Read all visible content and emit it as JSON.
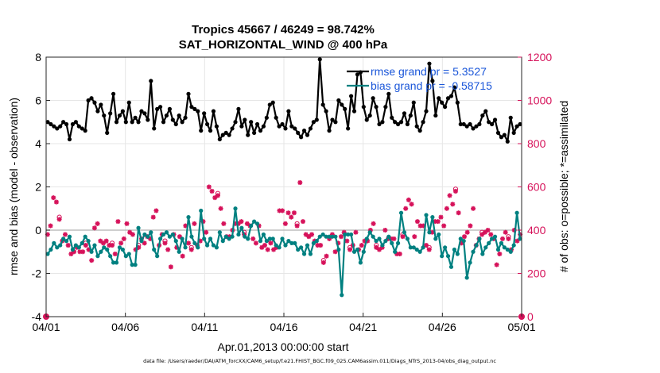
{
  "chart_data": {
    "type": "line",
    "title_line1": "Tropics 45667 / 46249 = 98.742%",
    "title_line2": "SAT_HORIZONTAL_WIND @ 400 hPa",
    "xlabel": "Apr.01,2013 00:00:00 start",
    "ylabel_left": "rmse and bias (model - observation)",
    "ylabel_right": "# of obs: o=possible; *=assimilated",
    "x_ticks": [
      "04/01",
      "04/06",
      "04/11",
      "04/16",
      "04/21",
      "04/26",
      "05/01"
    ],
    "ylim_left": [
      -4,
      8
    ],
    "y_ticks_left": [
      "-4",
      "-2",
      "0",
      "2",
      "4",
      "6",
      "8"
    ],
    "ylim_right": [
      0,
      1200
    ],
    "y_ticks_right": [
      "0",
      "200",
      "400",
      "600",
      "800",
      "1000",
      "1200"
    ],
    "xlim_days": [
      0,
      30
    ],
    "colors": {
      "rmse": "#000000",
      "bias": "#008080",
      "obs": "#d6125a",
      "zero": "#bdbdbd"
    },
    "legend": {
      "rmse_label": "rmse grand pr = 5.3527",
      "bias_label": "bias grand pr = -0.58715"
    },
    "series": [
      {
        "name": "rmse",
        "values": [
          5.0,
          4.9,
          4.8,
          4.7,
          4.8,
          5.0,
          4.9,
          4.2,
          4.9,
          5.0,
          4.8,
          4.7,
          4.6,
          6.0,
          6.1,
          5.9,
          5.5,
          5.8,
          5.3,
          4.5,
          5.4,
          6.3,
          5.0,
          5.3,
          5.5,
          5.0,
          5.9,
          5.0,
          5.2,
          5.0,
          5.5,
          5.4,
          5.1,
          6.9,
          4.7,
          5.6,
          5.7,
          5.0,
          5.3,
          5.6,
          5.1,
          4.9,
          5.3,
          5.0,
          5.2,
          6.3,
          5.7,
          5.6,
          5.5,
          4.6,
          5.4,
          4.9,
          4.6,
          5.5,
          4.8,
          4.2,
          4.4,
          4.5,
          4.4,
          4.7,
          5.0,
          5.6,
          4.8,
          5.1,
          4.4,
          5.0,
          4.5,
          4.9,
          4.6,
          4.8,
          5.2,
          5.8,
          5.9,
          5.2,
          4.8,
          4.9,
          4.7,
          5.5,
          4.8,
          4.7,
          4.5,
          4.3,
          4.6,
          4.4,
          4.7,
          5.0,
          5.1,
          7.9,
          5.8,
          5.5,
          4.6,
          5.1,
          5.0,
          6.0,
          5.8,
          5.6,
          4.7,
          6.2,
          5.5,
          7.2,
          7.3,
          5.7,
          5.1,
          5.3,
          6.1,
          5.7,
          4.9,
          5.0,
          5.7,
          6.3,
          5.2,
          5.0,
          4.9,
          5.0,
          5.4,
          4.9,
          5.3,
          5.9,
          4.8,
          4.6,
          5.0,
          5.5,
          7.7,
          6.9,
          5.3,
          6.1,
          5.9,
          5.7,
          6.1,
          6.2,
          6.6,
          5.9,
          4.9,
          4.9,
          4.8,
          4.9,
          4.7,
          4.8,
          4.9,
          5.3,
          5.5,
          5.0,
          4.9,
          5.1,
          4.5,
          4.3,
          4.4,
          4.1,
          5.2,
          4.5,
          4.8,
          4.9
        ]
      },
      {
        "name": "bias",
        "values": [
          -1.1,
          -0.9,
          -0.6,
          -0.8,
          -0.7,
          -0.4,
          -0.5,
          -0.3,
          -0.9,
          -0.7,
          -0.8,
          -0.6,
          -0.3,
          -0.5,
          -1.0,
          -0.7,
          -1.2,
          -1.0,
          -0.8,
          -0.9,
          -1.2,
          -1.5,
          -1.5,
          -0.8,
          -0.9,
          -1.2,
          -1.1,
          -1.6,
          -1.6,
          0.1,
          -0.5,
          -0.2,
          -0.3,
          -0.1,
          -0.9,
          -1.2,
          -0.4,
          -0.2,
          -0.1,
          -0.3,
          -0.2,
          -0.5,
          -1.0,
          -0.4,
          -0.8,
          0.6,
          -0.3,
          -0.6,
          -0.8,
          0.9,
          -0.4,
          -0.7,
          -0.4,
          -0.7,
          -0.8,
          -0.1,
          -0.5,
          -0.3,
          -0.4,
          -0.3,
          1.0,
          -0.2,
          0.1,
          -0.3,
          -0.4,
          0.2,
          0.4,
          0.3,
          -0.5,
          -0.2,
          -0.5,
          -0.4,
          -0.4,
          -0.7,
          -0.8,
          -0.4,
          -0.7,
          -0.5,
          -0.6,
          -0.6,
          -0.9,
          -0.8,
          -1.1,
          -0.7,
          -1.1,
          -0.6,
          -0.5,
          -0.3,
          -0.2,
          -0.3,
          -0.3,
          -0.3,
          -0.3,
          -0.9,
          -3.0,
          -0.2,
          -0.2,
          -0.2,
          -1.0,
          -0.9,
          -1.5,
          -1.0,
          -0.4,
          -0.1,
          -0.3,
          -0.5,
          -0.4,
          -0.7,
          -0.5,
          -0.3,
          -0.6,
          -1.0,
          -0.6,
          0.8,
          -0.1,
          -0.4,
          -0.8,
          -0.8,
          -0.9,
          -1.0,
          -0.8,
          0.7,
          -0.1,
          0.6,
          -0.4,
          -0.2,
          -1.2,
          -0.8,
          -1.2,
          -1.7,
          -0.9,
          -1.1,
          -0.4,
          -0.5,
          -2.2,
          -1.5,
          -1.0,
          -0.7,
          -0.4,
          -1.1,
          -0.8,
          -0.6,
          -0.4,
          -0.3,
          -0.9,
          -0.6,
          -0.8,
          -0.9,
          -1.0,
          -0.7,
          0.8,
          -0.4
        ]
      },
      {
        "name": "obs_assimilated",
        "values": [
          380,
          420,
          550,
          530,
          450,
          350,
          380,
          330,
          290,
          300,
          320,
          300,
          300,
          330,
          310,
          260,
          410,
          430,
          350,
          340,
          350,
          330,
          330,
          290,
          440,
          340,
          360,
          430,
          390,
          380,
          310,
          320,
          360,
          340,
          370,
          360,
          460,
          490,
          330,
          380,
          340,
          310,
          230,
          380,
          320,
          370,
          280,
          420,
          340,
          310,
          430,
          330,
          350,
          440,
          390,
          600,
          580,
          550,
          560,
          500,
          430,
          370,
          370,
          400,
          430,
          430,
          440,
          380,
          430,
          420,
          360,
          340,
          420,
          320,
          330,
          310,
          340,
          310,
          320,
          490,
          490,
          430,
          480,
          460,
          480,
          420,
          620,
          440,
          380,
          370,
          380,
          350,
          330,
          330,
          250,
          280,
          360,
          380,
          300,
          340,
          370,
          390,
          350,
          310,
          330,
          390,
          310,
          330,
          350,
          350,
          400,
          430,
          320,
          310,
          320,
          400,
          360,
          360,
          360,
          290,
          290,
          370,
          500,
          540,
          520,
          370,
          440,
          420,
          420,
          330,
          310,
          390,
          440,
          440,
          460,
          420,
          500,
          560,
          520,
          580,
          480,
          340,
          370,
          390,
          420,
          500,
          330,
          360,
          380,
          390,
          400,
          380,
          360,
          240,
          290,
          360,
          390,
          360,
          310,
          400,
          350,
          380
        ]
      },
      {
        "name": "obs_possible",
        "values": [
          390,
          430,
          560,
          540,
          460,
          360,
          390,
          340,
          300,
          310,
          330,
          310,
          310,
          340,
          320,
          270,
          420,
          440,
          360,
          350,
          360,
          340,
          340,
          300,
          450,
          350,
          370,
          440,
          400,
          390,
          320,
          330,
          370,
          350,
          380,
          370,
          470,
          500,
          340,
          390,
          350,
          320,
          240,
          390,
          330,
          380,
          290,
          430,
          350,
          320,
          440,
          340,
          360,
          450,
          400,
          610,
          590,
          560,
          570,
          510,
          440,
          380,
          380,
          410,
          440,
          440,
          450,
          390,
          440,
          430,
          370,
          350,
          430,
          330,
          340,
          320,
          350,
          320,
          330,
          500,
          500,
          440,
          490,
          470,
          490,
          430,
          630,
          450,
          390,
          380,
          390,
          360,
          340,
          340,
          260,
          290,
          370,
          390,
          310,
          350,
          380,
          400,
          360,
          320,
          340,
          400,
          320,
          340,
          360,
          360,
          410,
          440,
          330,
          320,
          330,
          410,
          370,
          370,
          370,
          300,
          300,
          380,
          510,
          550,
          530,
          380,
          450,
          430,
          430,
          340,
          320,
          400,
          450,
          450,
          470,
          430,
          510,
          570,
          530,
          590,
          490,
          350,
          380,
          400,
          430,
          510,
          340,
          370,
          390,
          400,
          410,
          390,
          370,
          250,
          300,
          370,
          400,
          370,
          320,
          410,
          360,
          390
        ]
      }
    ],
    "end_markers": {
      "left_value": 0,
      "right_value": 0
    }
  },
  "footer": {
    "datafile": "data file: /Users/raeder/DAI/ATM_forcXX/CAM6_setup/f.e21.FHIST_BGC.f09_025.CAM6assim.011/Diags_NTrS_2013-04/obs_diag_output.nc"
  }
}
